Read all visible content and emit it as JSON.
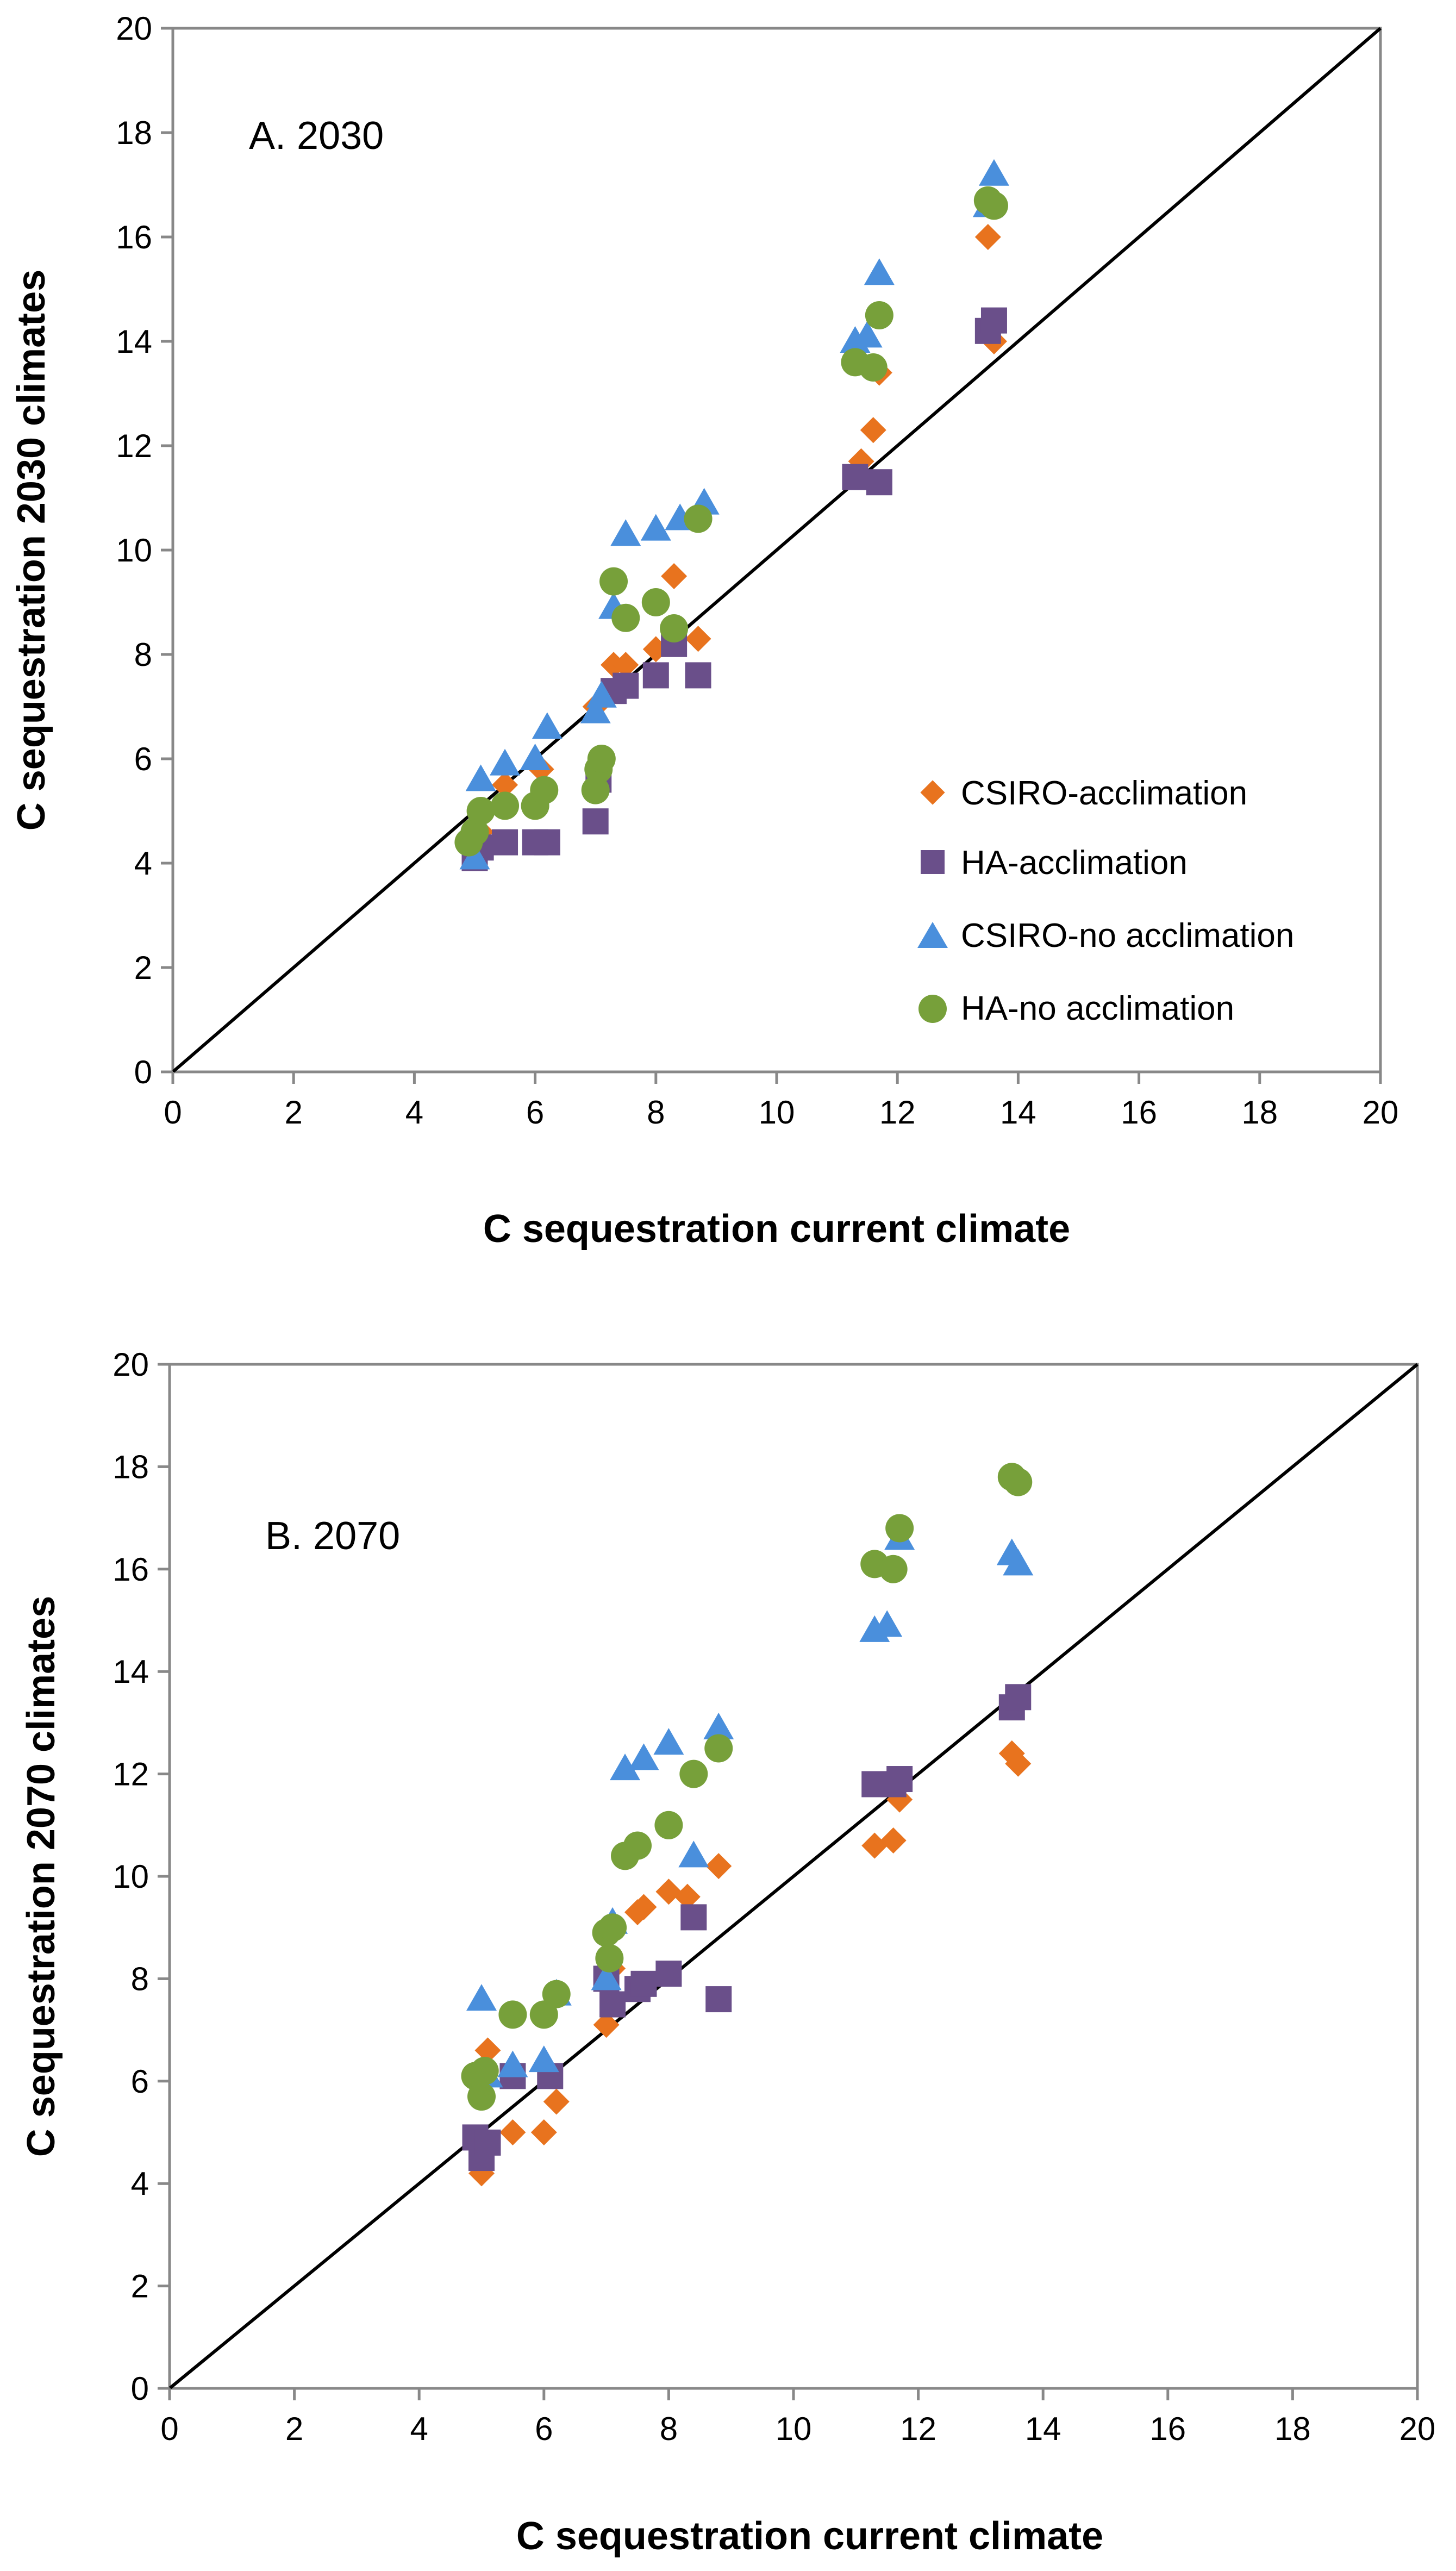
{
  "colors": {
    "csiro_accl": "#e8731e",
    "ha_accl": "#6a4f8a",
    "csiro_noaccl": "#4a8fdc",
    "ha_noaccl": "#77a03a"
  },
  "chart_data": [
    {
      "type": "scatter",
      "annotation": "A. 2030",
      "xlabel": "C sequestration  current climate",
      "ylabel": "C sequestration  2030  climates",
      "xlim": [
        0,
        20
      ],
      "ylim": [
        0,
        20
      ],
      "xticks": [
        "0",
        "2",
        "4",
        "6",
        "8",
        "10",
        "12",
        "14",
        "16",
        "18",
        "20"
      ],
      "yticks": [
        "0",
        "2",
        "4",
        "6",
        "8",
        "10",
        "12",
        "14",
        "16",
        "18",
        "20"
      ],
      "reference_line": [
        [
          0,
          0
        ],
        [
          20,
          20
        ]
      ],
      "legend": [
        "CSIRO-acclimation",
        "HA-acclimation",
        "CSIRO-no acclimation",
        "HA-no acclimation"
      ],
      "series": [
        {
          "name": "CSIRO-acclimation",
          "marker": "diamond",
          "x": [
            5.0,
            5.1,
            5.5,
            6.1,
            7.0,
            7.3,
            7.5,
            8.0,
            8.3,
            8.7,
            11.4,
            11.6,
            11.7,
            13.5,
            13.6
          ],
          "y": [
            4.3,
            4.6,
            5.5,
            5.8,
            7.0,
            7.8,
            7.8,
            8.1,
            9.5,
            8.3,
            11.7,
            12.3,
            13.4,
            16.0,
            14.0
          ]
        },
        {
          "name": "HA-acclimation",
          "marker": "square",
          "x": [
            5.0,
            5.1,
            5.5,
            6.0,
            6.2,
            7.0,
            7.05,
            7.3,
            7.5,
            8.0,
            8.3,
            8.7,
            11.3,
            11.7,
            13.5,
            13.6
          ],
          "y": [
            4.1,
            4.3,
            4.4,
            4.4,
            4.4,
            4.8,
            5.6,
            7.3,
            7.4,
            7.6,
            8.2,
            7.6,
            11.4,
            11.3,
            14.2,
            14.4
          ]
        },
        {
          "name": "CSIRO-no acclimation",
          "marker": "triangle",
          "x": [
            5.0,
            5.1,
            5.5,
            6.0,
            6.2,
            7.0,
            7.1,
            7.3,
            7.5,
            8.0,
            8.4,
            8.8,
            11.3,
            11.5,
            11.7,
            13.5,
            13.6
          ],
          "y": [
            4.1,
            5.6,
            5.9,
            6.0,
            6.6,
            6.9,
            7.2,
            8.9,
            10.3,
            10.4,
            10.6,
            10.9,
            14.0,
            14.1,
            15.3,
            16.6,
            17.2
          ]
        },
        {
          "name": "HA-no acclimation",
          "marker": "circle",
          "x": [
            4.9,
            5.0,
            5.1,
            5.5,
            6.0,
            6.15,
            7.0,
            7.05,
            7.1,
            7.3,
            7.5,
            8.0,
            8.3,
            8.7,
            11.3,
            11.6,
            11.7,
            13.5,
            13.6
          ],
          "y": [
            4.4,
            4.6,
            5.0,
            5.1,
            5.1,
            5.4,
            5.4,
            5.8,
            6.0,
            9.4,
            8.7,
            9.0,
            8.5,
            10.6,
            13.6,
            13.5,
            14.5,
            16.7,
            16.6
          ]
        }
      ]
    },
    {
      "type": "scatter",
      "annotation": "B. 2070",
      "xlabel": "C sequestration  current climate",
      "ylabel": "C sequestration  2070  climates",
      "xlim": [
        0,
        20
      ],
      "ylim": [
        0,
        20
      ],
      "xticks": [
        "0",
        "2",
        "4",
        "6",
        "8",
        "10",
        "12",
        "14",
        "16",
        "18",
        "20"
      ],
      "yticks": [
        "0",
        "2",
        "4",
        "6",
        "8",
        "10",
        "12",
        "14",
        "16",
        "18",
        "20"
      ],
      "reference_line": [
        [
          0,
          0
        ],
        [
          20,
          20
        ]
      ],
      "series": [
        {
          "name": "CSIRO-acclimation",
          "marker": "diamond",
          "x": [
            5.0,
            5.1,
            5.5,
            6.0,
            6.2,
            7.0,
            7.1,
            7.5,
            7.6,
            8.0,
            8.3,
            8.8,
            11.3,
            11.6,
            11.7,
            13.5,
            13.6
          ],
          "y": [
            4.2,
            6.6,
            5.0,
            5.0,
            5.6,
            7.1,
            8.2,
            9.3,
            9.4,
            9.7,
            9.6,
            10.2,
            10.6,
            10.7,
            11.5,
            12.4,
            12.2
          ]
        },
        {
          "name": "HA-acclimation",
          "marker": "square",
          "x": [
            4.9,
            5.0,
            5.1,
            5.5,
            6.1,
            7.0,
            7.1,
            7.5,
            7.6,
            8.0,
            8.4,
            8.8,
            11.3,
            11.6,
            11.7,
            13.5,
            13.6
          ],
          "y": [
            4.9,
            4.5,
            4.8,
            6.1,
            6.1,
            8.0,
            7.5,
            7.8,
            7.9,
            8.1,
            9.2,
            7.6,
            11.8,
            11.8,
            11.9,
            13.3,
            13.5
          ]
        },
        {
          "name": "CSIRO-no acclimation",
          "marker": "triangle",
          "x": [
            5.0,
            5.1,
            5.5,
            6.0,
            6.2,
            7.0,
            7.1,
            7.3,
            7.6,
            8.0,
            8.4,
            8.8,
            11.3,
            11.5,
            11.7,
            13.5,
            13.6
          ],
          "y": [
            7.6,
            6.1,
            6.3,
            6.4,
            7.7,
            8.0,
            9.1,
            12.1,
            12.3,
            12.6,
            10.4,
            12.9,
            14.8,
            14.9,
            16.6,
            16.3,
            16.1
          ]
        },
        {
          "name": "HA-no acclimation",
          "marker": "circle",
          "x": [
            4.9,
            5.0,
            5.05,
            5.5,
            6.0,
            6.2,
            7.0,
            7.05,
            7.1,
            7.3,
            7.5,
            8.0,
            8.4,
            8.8,
            11.3,
            11.6,
            11.7,
            13.5,
            13.6
          ],
          "y": [
            6.1,
            5.7,
            6.2,
            7.3,
            7.3,
            7.7,
            8.9,
            8.4,
            9.0,
            10.4,
            10.6,
            11.0,
            12.0,
            12.5,
            16.1,
            16.0,
            16.8,
            17.8,
            17.7
          ]
        }
      ]
    }
  ]
}
